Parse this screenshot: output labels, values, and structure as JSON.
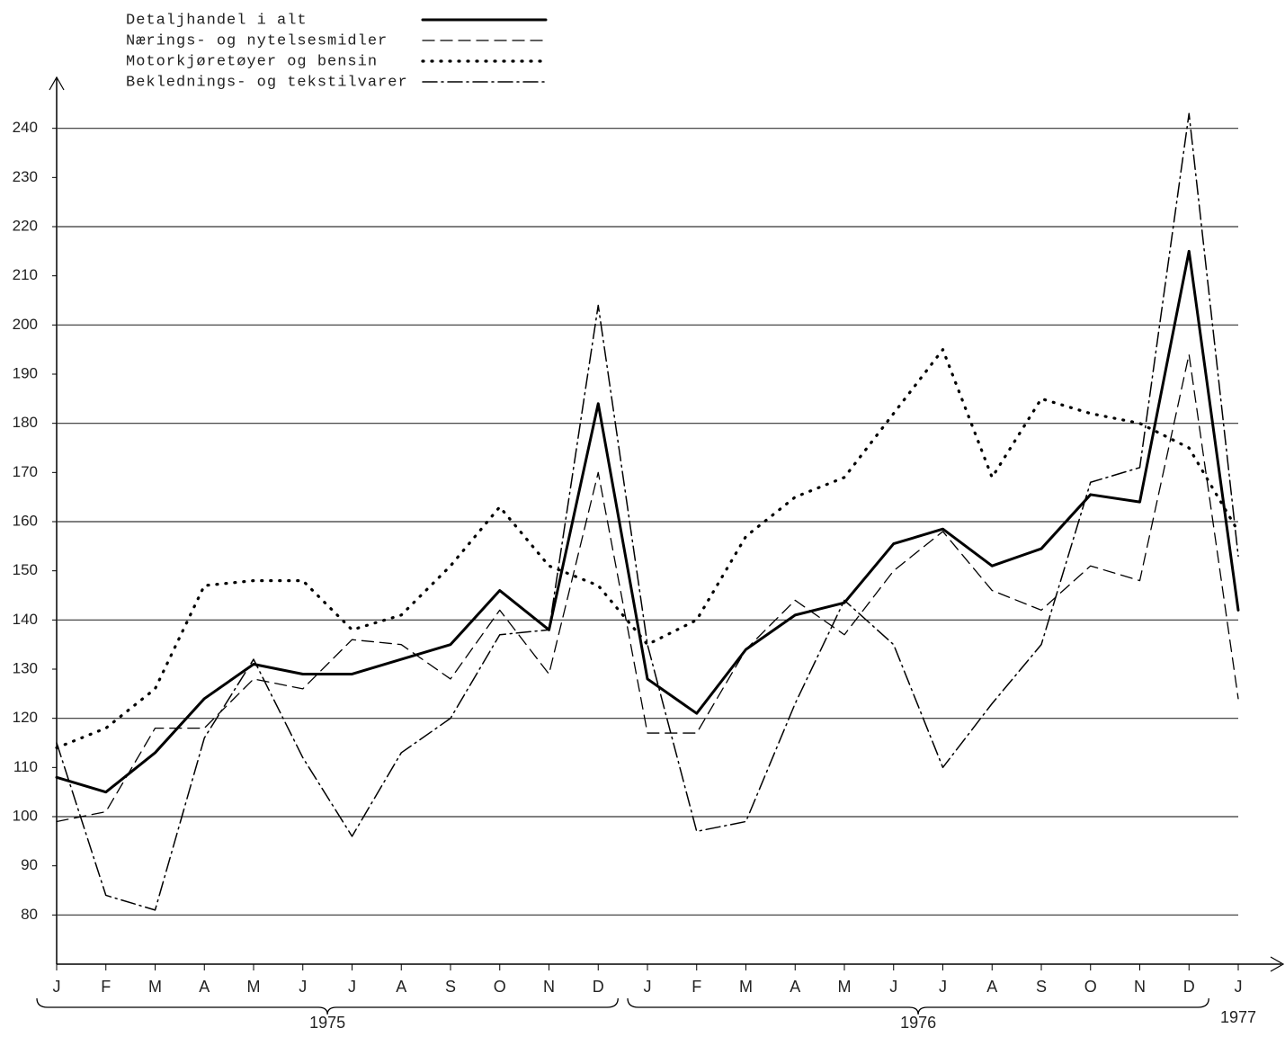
{
  "chart_data": {
    "type": "line",
    "categories": [
      "J",
      "F",
      "M",
      "A",
      "M",
      "J",
      "J",
      "A",
      "S",
      "O",
      "N",
      "D",
      "J",
      "F",
      "M",
      "A",
      "M",
      "J",
      "J",
      "A",
      "S",
      "O",
      "N",
      "D",
      "J"
    ],
    "year_labels": [
      "1975",
      "1976",
      "1977"
    ],
    "series": [
      {
        "name": "Detaljhandel i alt",
        "color": "#000000",
        "style": "solid",
        "values": [
          108,
          105,
          113,
          124,
          131,
          129,
          129,
          132,
          135,
          146,
          138,
          184,
          128,
          121,
          134,
          141,
          143.5,
          155.5,
          158.5,
          151,
          154.5,
          165.5,
          164,
          215,
          142
        ]
      },
      {
        "name": "Nærings- og nytelsesmidler",
        "color": "#000000",
        "style": "dashed",
        "values": [
          99,
          101,
          118,
          118,
          128,
          126,
          136,
          135,
          128,
          142,
          129,
          170,
          117,
          117,
          134,
          144,
          137,
          150,
          158,
          146,
          142,
          151,
          148,
          194,
          124
        ]
      },
      {
        "name": "Motorkjøretøyer og bensin",
        "color": "#000000",
        "style": "dotted",
        "values": [
          114,
          118,
          126,
          147,
          148,
          148,
          138,
          141,
          151,
          163,
          151,
          147,
          135,
          140,
          157,
          165,
          169,
          182,
          195,
          169,
          185,
          182,
          180,
          175,
          158
        ]
      },
      {
        "name": "Beklednings- og tekstilvarer",
        "color": "#000000",
        "style": "dashdot",
        "values": [
          115,
          84,
          81,
          116,
          132,
          112,
          96,
          113,
          120,
          137,
          138,
          204,
          135,
          97,
          99,
          123,
          144,
          135,
          110,
          123,
          135,
          168,
          171,
          243,
          153
        ]
      }
    ],
    "ylim": [
      70,
      250
    ],
    "yticks": [
      80,
      90,
      100,
      110,
      120,
      130,
      140,
      150,
      160,
      170,
      180,
      190,
      200,
      210,
      220,
      230,
      240
    ],
    "gridlines": [
      80,
      100,
      120,
      140,
      160,
      180,
      200,
      220,
      240
    ],
    "legend": "top-left"
  }
}
